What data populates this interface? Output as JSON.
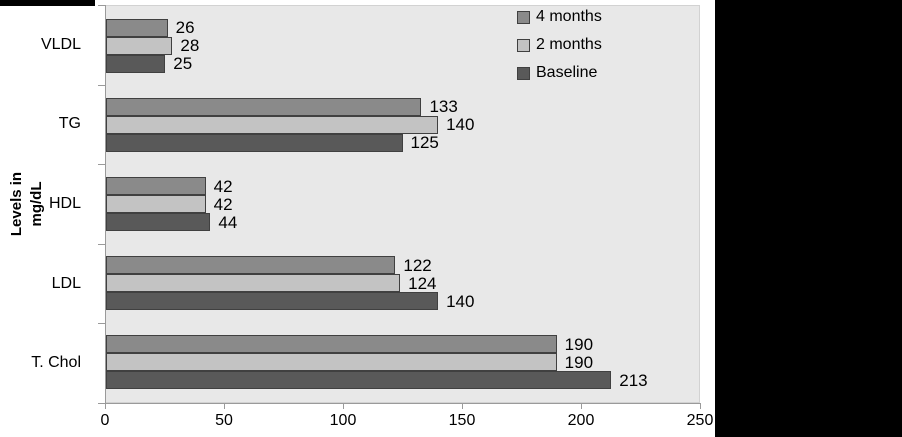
{
  "chart_data": {
    "type": "bar",
    "orientation": "horizontal",
    "title": "",
    "ylabel": "Levels in mg/dL",
    "ylabel_lines": [
      "Levels in",
      "mg/dL"
    ],
    "xlabel": "",
    "xlim": [
      0,
      250
    ],
    "xticks": [
      0,
      50,
      100,
      150,
      200,
      250
    ],
    "grid": false,
    "legend_position": "top-right-inside",
    "categories": [
      "VLDL",
      "TG",
      "HDL",
      "LDL",
      "T. Chol"
    ],
    "series": [
      {
        "name": "4 months",
        "color": "#8a8a8a",
        "values": [
          26,
          133,
          42,
          122,
          190
        ]
      },
      {
        "name": "2 months",
        "color": "#c3c3c3",
        "values": [
          28,
          140,
          42,
          124,
          190
        ]
      },
      {
        "name": "Baseline",
        "color": "#595959",
        "values": [
          25,
          125,
          44,
          140,
          213
        ]
      }
    ],
    "colors": {
      "plot_background": "#e8e8e8",
      "bar_border": "#404040",
      "axis_line": "#9a9a9a",
      "text": "#000000",
      "side_panel": "#000000"
    }
  }
}
